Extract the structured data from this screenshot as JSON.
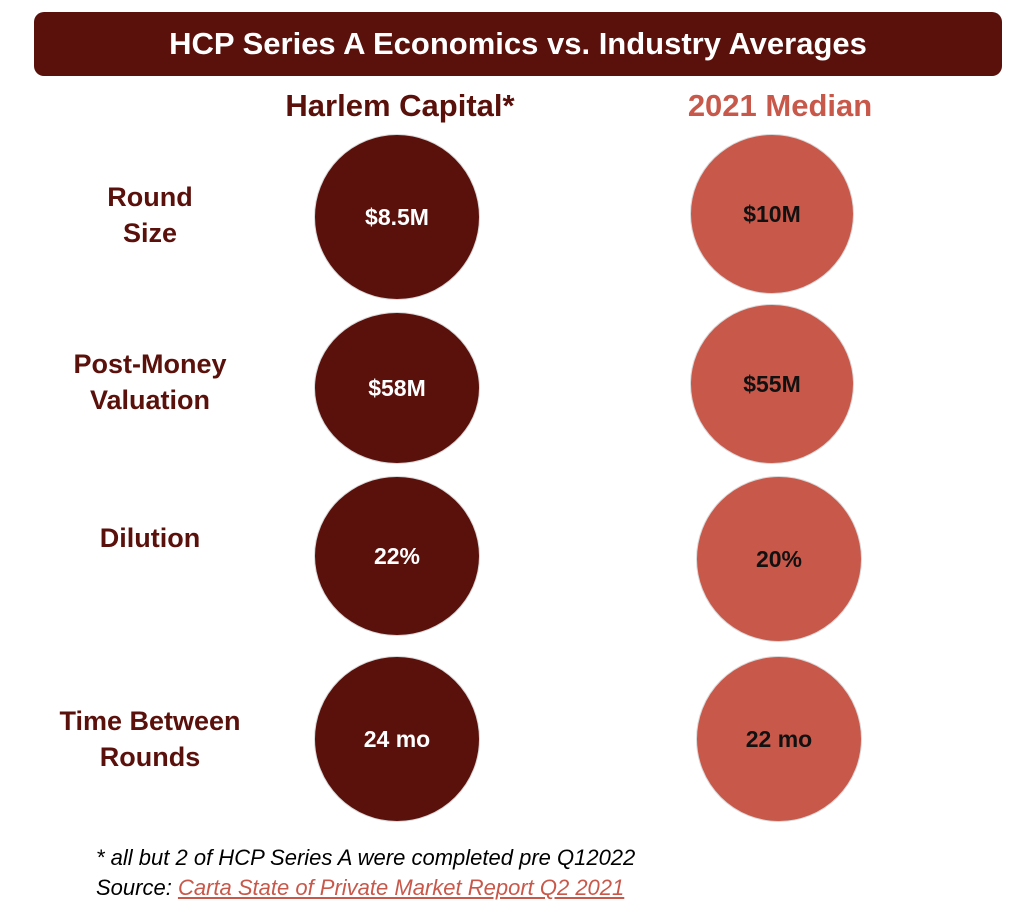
{
  "title": "HCP Series A Economics vs. Industry Averages",
  "columns": {
    "hcp": "Harlem Capital*",
    "median": "2021 Median"
  },
  "rows": [
    {
      "label_lines": [
        "Round",
        "Size"
      ],
      "hcp": "$8.5M",
      "median": "$10M"
    },
    {
      "label_lines": [
        "Post-Money",
        "Valuation"
      ],
      "hcp": "$58M",
      "median": "$55M"
    },
    {
      "label_lines": [
        "Dilution"
      ],
      "hcp": "22%",
      "median": "20%"
    },
    {
      "label_lines": [
        "Time Between",
        "Rounds"
      ],
      "hcp": "24 mo",
      "median": "22 mo"
    }
  ],
  "footnote": {
    "note": "* all but 2 of HCP Series A were completed pre Q12022",
    "source_prefix": "Source: ",
    "source_link": "Carta State of Private Market Report Q2 2021"
  },
  "colors": {
    "hcp": "#5a100b",
    "median": "#c8584a"
  }
}
